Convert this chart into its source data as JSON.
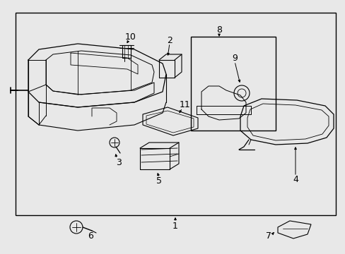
{
  "bg_color": "#e8e8e8",
  "line_color": "#000000",
  "text_color": "#000000",
  "font_size": 9
}
